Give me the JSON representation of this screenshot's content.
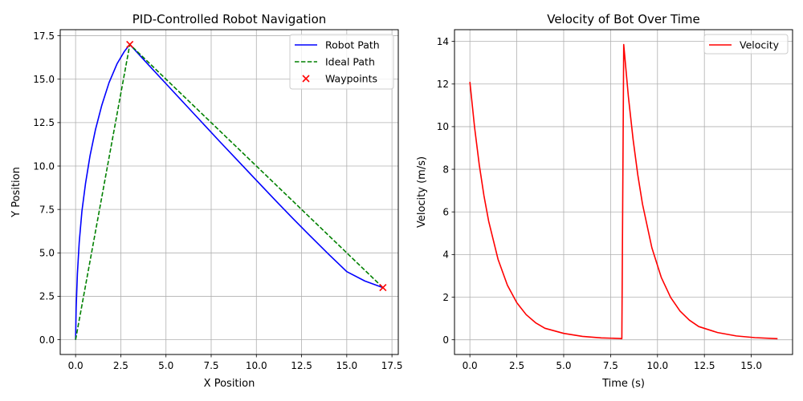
{
  "chart_data": [
    {
      "type": "line",
      "title": "PID-Controlled Robot Navigation",
      "xlabel": "X Position",
      "ylabel": "Y Position",
      "xlim": [
        -0.85,
        17.85
      ],
      "ylim": [
        -0.85,
        17.85
      ],
      "xticks": [
        0.0,
        2.5,
        5.0,
        7.5,
        10.0,
        12.5,
        15.0,
        17.5
      ],
      "xtick_labels": [
        "0.0",
        "2.5",
        "5.0",
        "7.5",
        "10.0",
        "12.5",
        "15.0",
        "17.5"
      ],
      "yticks": [
        0.0,
        2.5,
        5.0,
        7.5,
        10.0,
        12.5,
        15.0,
        17.5
      ],
      "ytick_labels": [
        "0.0",
        "2.5",
        "5.0",
        "7.5",
        "10.0",
        "12.5",
        "15.0",
        "17.5"
      ],
      "grid": true,
      "legend_position": "top-right",
      "series": [
        {
          "name": "Robot Path",
          "style": "solid",
          "color": "#0000ff",
          "x": [
            0,
            0.03,
            0.1,
            0.2,
            0.35,
            0.55,
            0.8,
            1.1,
            1.45,
            1.85,
            2.3,
            2.7,
            3.0,
            4.0,
            5.0,
            6.0,
            7.0,
            8.0,
            9.0,
            10.0,
            11.0,
            12.0,
            13.0,
            14.0,
            15.0,
            16.0,
            17.0
          ],
          "y": [
            0,
            1.8,
            3.8,
            5.6,
            7.4,
            9.0,
            10.6,
            12.1,
            13.5,
            14.8,
            15.9,
            16.6,
            17.0,
            15.86,
            14.74,
            13.62,
            12.5,
            11.38,
            10.28,
            9.18,
            8.08,
            7.0,
            5.95,
            4.92,
            3.92,
            3.38,
            3.0
          ]
        },
        {
          "name": "Ideal Path",
          "style": "dashed",
          "color": "#008000",
          "x": [
            0,
            3,
            17
          ],
          "y": [
            0,
            17,
            3
          ]
        }
      ],
      "scatter": {
        "name": "Waypoints",
        "marker": "x",
        "color": "#ff0000",
        "x": [
          3,
          17
        ],
        "y": [
          17,
          3
        ]
      }
    },
    {
      "type": "line",
      "title": "Velocity of Bot Over Time",
      "xlabel": "Time (s)",
      "ylabel": "Velocity (m/s)",
      "xlim": [
        -0.82,
        17.2
      ],
      "ylim": [
        -0.69,
        14.55
      ],
      "xticks": [
        0.0,
        2.5,
        5.0,
        7.5,
        10.0,
        12.5,
        15.0
      ],
      "xtick_labels": [
        "0.0",
        "2.5",
        "5.0",
        "7.5",
        "10.0",
        "12.5",
        "15.0"
      ],
      "yticks": [
        0,
        2,
        4,
        6,
        8,
        10,
        12,
        14
      ],
      "ytick_labels": [
        "0",
        "2",
        "4",
        "6",
        "8",
        "10",
        "12",
        "14"
      ],
      "grid": true,
      "legend_position": "top-right",
      "series": [
        {
          "name": "Velocity",
          "style": "solid",
          "color": "#ff0000",
          "x": [
            0.0,
            0.25,
            0.5,
            0.75,
            1.0,
            1.5,
            2.0,
            2.5,
            3.0,
            3.5,
            4.0,
            5.0,
            6.0,
            7.0,
            8.0,
            8.1,
            8.2,
            8.45,
            8.7,
            8.95,
            9.2,
            9.7,
            10.2,
            10.7,
            11.2,
            11.7,
            12.2,
            13.2,
            14.2,
            15.2,
            16.4
          ],
          "y": [
            12.1,
            9.97,
            8.21,
            6.76,
            5.57,
            3.78,
            2.56,
            1.74,
            1.18,
            0.8,
            0.54,
            0.3,
            0.16,
            0.09,
            0.06,
            0.05,
            13.85,
            11.4,
            9.4,
            7.74,
            6.37,
            4.32,
            2.93,
            1.99,
            1.35,
            0.92,
            0.62,
            0.34,
            0.18,
            0.1,
            0.05
          ]
        }
      ]
    }
  ]
}
